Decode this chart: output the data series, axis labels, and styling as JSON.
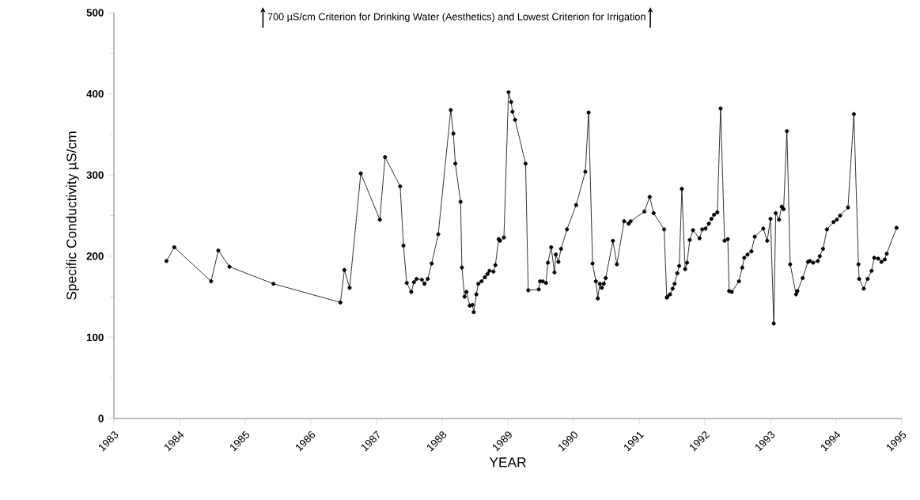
{
  "chart_data": {
    "type": "line",
    "color": "#000000",
    "marker": "circle",
    "xlabel": "YEAR",
    "ylabel": "Specific Conductivity µS/cm",
    "annotations": [
      "700 µS/cm Criterion for Drinking Water (Aesthetics) and Lowest Criterion for Irrigation"
    ],
    "xlim": [
      1983,
      1995
    ],
    "ylim": [
      0,
      500
    ],
    "xticks": [
      1983,
      1984,
      1985,
      1986,
      1987,
      1988,
      1989,
      1990,
      1991,
      1992,
      1993,
      1994,
      1995
    ],
    "yticks": [
      0,
      100,
      200,
      300,
      400,
      500
    ],
    "x": [
      1983.8,
      1983.92,
      1984.48,
      1984.59,
      1984.76,
      1985.43,
      1986.45,
      1986.51,
      1986.59,
      1986.76,
      1987.05,
      1987.13,
      1987.36,
      1987.41,
      1987.46,
      1987.53,
      1987.57,
      1987.61,
      1987.69,
      1987.73,
      1987.78,
      1987.84,
      1987.94,
      1988.13,
      1988.17,
      1988.2,
      1988.28,
      1988.3,
      1988.34,
      1988.37,
      1988.42,
      1988.46,
      1988.48,
      1988.52,
      1988.55,
      1988.6,
      1988.65,
      1988.69,
      1988.72,
      1988.78,
      1988.81,
      1988.86,
      1988.88,
      1988.94,
      1989.01,
      1989.05,
      1989.07,
      1989.11,
      1989.27,
      1989.31,
      1989.47,
      1989.49,
      1989.53,
      1989.58,
      1989.61,
      1989.66,
      1989.71,
      1989.73,
      1989.77,
      1989.81,
      1989.9,
      1990.04,
      1990.18,
      1990.23,
      1990.29,
      1990.34,
      1990.37,
      1990.4,
      1990.43,
      1990.46,
      1990.49,
      1990.6,
      1990.66,
      1990.77,
      1990.84,
      1990.87,
      1991.08,
      1991.16,
      1991.22,
      1991.38,
      1991.42,
      1991.43,
      1991.47,
      1991.51,
      1991.54,
      1991.58,
      1991.61,
      1991.65,
      1991.7,
      1991.73,
      1991.77,
      1991.82,
      1991.92,
      1991.96,
      1992.01,
      1992.06,
      1992.1,
      1992.14,
      1992.19,
      1992.24,
      1992.3,
      1992.35,
      1992.37,
      1992.41,
      1992.52,
      1992.57,
      1992.6,
      1992.65,
      1992.71,
      1992.76,
      1992.89,
      1992.95,
      1993.0,
      1993.05,
      1993.08,
      1993.13,
      1993.17,
      1993.2,
      1993.25,
      1993.3,
      1993.39,
      1993.41,
      1993.49,
      1993.57,
      1993.6,
      1993.65,
      1993.72,
      1993.75,
      1993.8,
      1993.86,
      1993.96,
      1994.01,
      1994.06,
      1994.18,
      1994.27,
      1994.34,
      1994.35,
      1994.42,
      1994.48,
      1994.54,
      1994.58,
      1994.64,
      1994.69,
      1994.74,
      1994.77,
      1994.92
    ],
    "values": [
      194,
      211,
      169,
      207,
      187,
      166,
      143,
      183,
      161,
      302,
      245,
      322,
      286,
      213,
      167,
      156,
      168,
      172,
      171,
      166,
      172,
      191,
      227,
      380,
      351,
      314,
      267,
      186,
      150,
      156,
      139,
      140,
      131,
      153,
      166,
      169,
      174,
      178,
      182,
      181,
      189,
      221,
      219,
      223,
      402,
      390,
      378,
      368,
      314,
      158,
      159,
      169,
      169,
      167,
      192,
      211,
      180,
      202,
      193,
      209,
      233,
      263,
      304,
      377,
      191,
      169,
      148,
      166,
      161,
      166,
      173,
      219,
      190,
      243,
      240,
      243,
      255,
      273,
      253,
      233,
      149,
      150,
      153,
      160,
      166,
      179,
      188,
      283,
      184,
      192,
      220,
      232,
      222,
      233,
      234,
      240,
      246,
      251,
      254,
      382,
      219,
      221,
      157,
      156,
      169,
      186,
      198,
      202,
      206,
      224,
      234,
      219,
      246,
      117,
      253,
      245,
      261,
      258,
      354,
      190,
      153,
      157,
      173,
      193,
      194,
      192,
      194,
      200,
      209,
      233,
      242,
      245,
      250,
      260,
      375,
      190,
      172,
      160,
      172,
      182,
      198,
      197,
      193,
      196,
      203,
      235
    ]
  }
}
